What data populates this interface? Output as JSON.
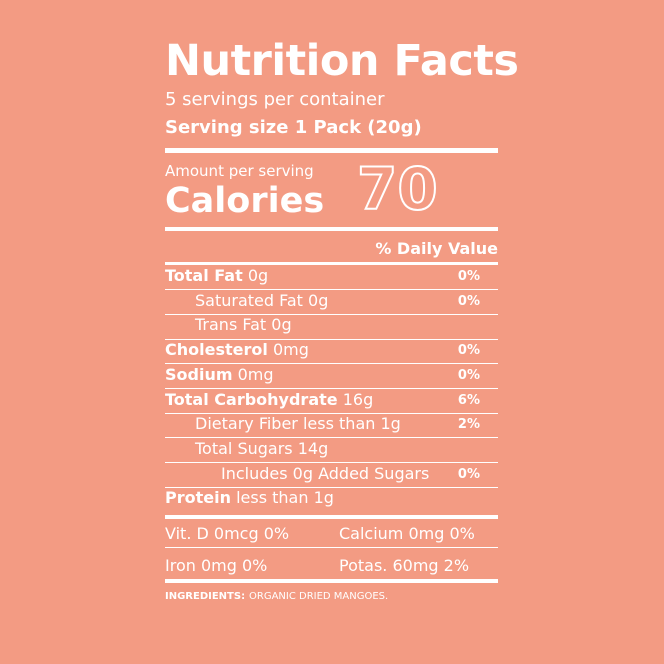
{
  "title": "Nutrition Facts",
  "servings": "5 servings per container",
  "serving_size": "Serving size 1 Pack (20g)",
  "calories": {
    "amount_label": "Amount per serving",
    "label": "Calories",
    "value": 70
  },
  "daily_value_header": "% Daily Value",
  "rows": [
    {
      "name": "Total Fat",
      "amount": "0g",
      "dv": "0%",
      "bold": true,
      "indent": 0
    },
    {
      "name": "Saturated Fat",
      "amount": "0g",
      "dv": "0%",
      "bold": false,
      "indent": 1
    },
    {
      "name": "Trans Fat",
      "amount": "0g",
      "bold": false,
      "indent": 1
    },
    {
      "name": "Cholesterol",
      "amount": "0mg",
      "dv": "0%",
      "bold": true,
      "indent": 0
    },
    {
      "name": "Sodium",
      "amount": "0mg",
      "dv": "0%",
      "bold": true,
      "indent": 0
    },
    {
      "name": "Total Carbohydrate",
      "amount": "16g",
      "dv": "6%",
      "bold": true,
      "indent": 0
    },
    {
      "name": "Dietary Fiber",
      "amount": "less than 1g",
      "dv": "2%",
      "bold": false,
      "indent": 1
    },
    {
      "name": "Total Sugars",
      "amount": "14g",
      "bold": false,
      "indent": 1
    },
    {
      "name": "Includes 0g Added Sugars",
      "dv": "0%",
      "bold": false,
      "indent": 2
    },
    {
      "name": "Protein",
      "amount": "less than 1g",
      "bold": true,
      "indent": 0
    }
  ],
  "micronutrients": [
    [
      "Vit. D 0mcg 0%",
      "Calcium 0mg 0%"
    ],
    [
      "Iron 0mg 0%",
      "Potas. 60mg 2%"
    ]
  ],
  "ingredients": {
    "label": "INGREDIENTS:",
    "text": "ORGANIC DRIED MANGOES."
  }
}
